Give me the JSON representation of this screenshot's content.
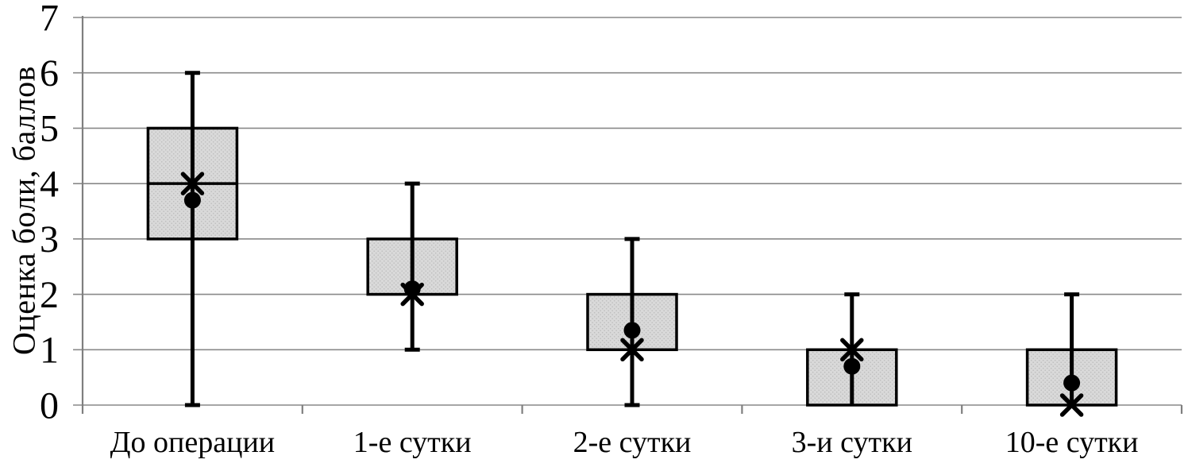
{
  "page": {
    "background": "#ffffff"
  },
  "chart_data": {
    "type": "boxplot",
    "title": "",
    "ylabel": "Оценка боли, баллов",
    "xlabel": "",
    "categories": [
      "До операции",
      "1-е сутки",
      "2-е сутки",
      "3-и сутки",
      "10-е сутки"
    ],
    "ylim": [
      0,
      7
    ],
    "yticks": [
      0,
      1,
      2,
      3,
      4,
      5,
      6,
      7
    ],
    "grid": "horizontal",
    "legend": "none",
    "boxes": [
      {
        "category": "До операции",
        "whisker_low": 0,
        "q1": 3,
        "median": 4,
        "q3": 5,
        "whisker_high": 6,
        "mean_dot": 3.7,
        "x_marker": 4
      },
      {
        "category": "1-е сутки",
        "whisker_low": 1,
        "q1": 2,
        "median": 2,
        "q3": 3,
        "whisker_high": 4,
        "mean_dot": 2.1,
        "x_marker": 2
      },
      {
        "category": "2-е сутки",
        "whisker_low": 0,
        "q1": 1,
        "median": 1,
        "q3": 2,
        "whisker_high": 3,
        "mean_dot": 1.35,
        "x_marker": 1
      },
      {
        "category": "3-и сутки",
        "whisker_low": 0,
        "q1": 0,
        "median": 1,
        "q3": 1,
        "whisker_high": 2,
        "mean_dot": 0.7,
        "x_marker": 1
      },
      {
        "category": "10-е сутки",
        "whisker_low": 0,
        "q1": 0,
        "median": 0,
        "q3": 1,
        "whisker_high": 2,
        "mean_dot": 0.4,
        "x_marker": 0
      }
    ],
    "colors": {
      "box_fill": "#d9d9d9",
      "box_fill_dots": "#bdbdbd",
      "box_border": "#000000",
      "whisker": "#000000",
      "marker": "#000000",
      "gridline": "#898989",
      "axis": "#7f7f7f",
      "text": "#000000",
      "background": "#ffffff"
    }
  }
}
